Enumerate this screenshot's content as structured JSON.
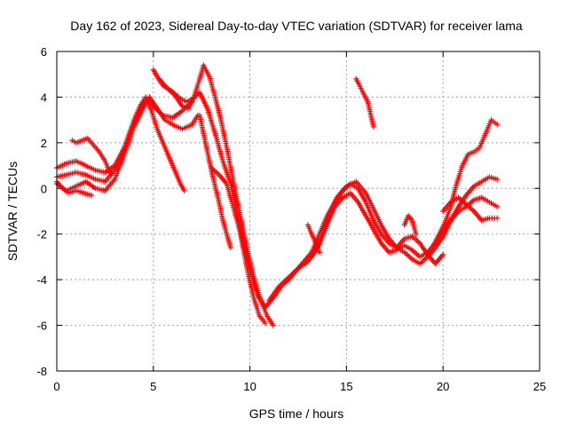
{
  "chart_data": {
    "type": "scatter",
    "title": "Day 162 of 2023, Sidereal Day-to-day VTEC variation (SDTVAR) for receiver lama",
    "xlabel": "GPS time / hours",
    "ylabel": "SDTVAR / TECUs",
    "xlim": [
      0,
      25
    ],
    "ylim": [
      -8,
      6
    ],
    "xticks": [
      "0",
      "5",
      "10",
      "15",
      "20",
      "25"
    ],
    "yticks": [
      "-8",
      "-6",
      "-4",
      "-2",
      "0",
      "2",
      "4",
      "6"
    ],
    "grid": true,
    "marker": "plus",
    "color": "#ff0000",
    "series": [
      {
        "x": [
          0.0,
          0.5,
          1.0,
          1.5,
          2.0,
          2.5,
          3.0,
          3.5,
          4.0,
          4.3,
          4.6,
          4.9,
          5.2,
          5.6,
          6.0,
          6.4,
          6.6
        ],
        "y": [
          0.9,
          1.1,
          1.2,
          1.0,
          0.8,
          0.7,
          1.0,
          1.8,
          3.0,
          3.6,
          4.0,
          3.4,
          2.6,
          1.8,
          1.0,
          0.2,
          -0.1
        ]
      },
      {
        "x": [
          0.0,
          0.5,
          1.0,
          1.5,
          2.0,
          2.5,
          3.0,
          3.5,
          4.0,
          4.5,
          4.8,
          5.2,
          5.6,
          6.0,
          6.5,
          7.0,
          7.3
        ],
        "y": [
          0.5,
          0.6,
          0.7,
          0.6,
          0.4,
          0.3,
          0.8,
          1.8,
          2.9,
          3.7,
          4.0,
          3.5,
          3.0,
          2.8,
          2.6,
          2.8,
          3.2
        ]
      },
      {
        "x": [
          0.0,
          0.5,
          1.0,
          1.5,
          2.0,
          2.5,
          3.0,
          3.5,
          4.0,
          4.4,
          4.7,
          5.0,
          5.5,
          6.0,
          6.5,
          7.0
        ],
        "y": [
          0.2,
          -0.1,
          0.1,
          0.3,
          0.0,
          -0.1,
          0.4,
          1.5,
          2.7,
          3.4,
          3.9,
          3.6,
          3.2,
          3.1,
          3.4,
          3.8
        ]
      },
      {
        "x": [
          0.0,
          0.3,
          0.6,
          1.0,
          1.4,
          1.8
        ],
        "y": [
          0.3,
          0.0,
          -0.2,
          -0.1,
          -0.2,
          -0.3
        ]
      },
      {
        "x": [
          0.8,
          1.0,
          1.3,
          1.6,
          1.9,
          2.2,
          2.5,
          2.8
        ],
        "y": [
          2.1,
          2.0,
          2.1,
          2.2,
          1.9,
          1.6,
          1.2,
          0.6
        ]
      },
      {
        "x": [
          5.0,
          5.2,
          5.5,
          5.9,
          6.3,
          6.7,
          7.0,
          7.4,
          7.8,
          8.2,
          8.6,
          9.0,
          9.3,
          9.6,
          9.9,
          10.2,
          10.5,
          10.8
        ],
        "y": [
          5.2,
          4.9,
          4.5,
          4.3,
          4.0,
          3.8,
          3.9,
          4.2,
          3.5,
          2.4,
          1.2,
          0.2,
          -1.0,
          -2.4,
          -3.7,
          -4.8,
          -5.6,
          -5.9
        ]
      },
      {
        "x": [
          5.3,
          5.7,
          6.1,
          6.5,
          6.8,
          7.1,
          7.4,
          7.6,
          7.9,
          8.2,
          8.5,
          8.8,
          9.1,
          9.4,
          9.7,
          10.0,
          10.3,
          10.6,
          10.9,
          11.2
        ],
        "y": [
          4.8,
          4.4,
          4.1,
          3.6,
          3.5,
          4.0,
          4.8,
          5.4,
          4.9,
          4.0,
          3.0,
          1.8,
          0.5,
          -0.8,
          -2.0,
          -3.2,
          -4.2,
          -5.0,
          -5.6,
          -6.0
        ]
      },
      {
        "x": [
          7.4,
          7.6,
          7.8,
          8.0,
          8.2,
          8.4,
          8.6,
          8.8,
          9.0
        ],
        "y": [
          3.2,
          2.4,
          1.6,
          0.8,
          0.1,
          -0.6,
          -1.4,
          -2.0,
          -2.6
        ]
      },
      {
        "x": [
          8.0,
          8.4,
          8.8,
          9.2,
          9.6,
          10.0,
          10.4,
          10.8,
          11.2,
          11.6,
          12.0,
          12.4,
          12.8,
          13.2,
          13.6,
          14.0,
          14.4,
          14.8,
          15.2,
          15.6,
          16.0,
          16.4,
          16.8,
          17.2,
          17.6,
          18.0,
          18.4,
          18.8,
          19.2,
          19.6,
          20.0
        ],
        "y": [
          0.9,
          0.6,
          0.2,
          -1.0,
          -2.2,
          -3.6,
          -4.7,
          -5.2,
          -4.8,
          -4.3,
          -4.0,
          -3.6,
          -3.2,
          -2.8,
          -2.0,
          -1.2,
          -0.6,
          -0.1,
          0.2,
          0.0,
          -0.6,
          -1.4,
          -2.0,
          -2.4,
          -2.6,
          -2.2,
          -2.1,
          -2.4,
          -2.9,
          -3.3,
          -2.9
        ]
      },
      {
        "x": [
          11.0,
          11.5,
          12.0,
          12.5,
          13.0,
          13.5,
          14.0,
          14.5,
          15.0,
          15.5,
          16.0,
          16.4,
          16.8,
          17.2,
          17.6,
          18.0,
          18.4,
          18.8,
          19.2,
          19.6,
          20.0,
          20.4,
          20.8,
          21.2,
          21.6,
          22.0,
          22.4,
          22.8
        ],
        "y": [
          -4.9,
          -4.3,
          -3.9,
          -3.5,
          -3.2,
          -2.6,
          -1.4,
          -0.4,
          0.1,
          0.3,
          -0.2,
          -0.9,
          -1.6,
          -2.2,
          -2.6,
          -2.8,
          -3.1,
          -3.3,
          -3.0,
          -2.6,
          -2.1,
          -1.4,
          -0.8,
          -0.3,
          0.1,
          0.3,
          0.5,
          0.4
        ]
      },
      {
        "x": [
          13.2,
          13.6,
          14.0,
          14.4,
          14.8,
          15.2,
          15.6,
          16.0,
          16.4,
          16.8,
          17.2,
          17.6,
          18.0,
          18.4,
          18.8,
          19.2,
          19.6,
          20.0,
          20.4,
          20.8,
          21.2,
          21.6,
          22.0,
          22.4,
          22.8
        ],
        "y": [
          -3.0,
          -2.4,
          -1.6,
          -0.8,
          -0.4,
          -0.2,
          -0.6,
          -1.2,
          -1.8,
          -2.4,
          -2.8,
          -2.7,
          -2.5,
          -2.7,
          -3.0,
          -2.8,
          -2.4,
          -1.8,
          -1.4,
          -1.0,
          -0.8,
          -0.5,
          -0.4,
          -0.6,
          -0.8
        ]
      },
      {
        "x": [
          13.0,
          13.3,
          13.6
        ],
        "y": [
          -1.6,
          -2.2,
          -2.8
        ]
      },
      {
        "x": [
          15.5,
          15.8,
          16.1,
          16.4
        ],
        "y": [
          4.8,
          4.3,
          3.8,
          2.7
        ]
      },
      {
        "x": [
          19.5,
          19.8,
          20.1,
          20.4,
          20.7,
          21.0,
          21.3,
          21.6,
          21.9,
          22.2,
          22.5,
          22.8
        ],
        "y": [
          -2.5,
          -2.0,
          -1.5,
          -0.8,
          0.2,
          1.0,
          1.5,
          1.6,
          1.8,
          2.4,
          3.0,
          2.8
        ]
      },
      {
        "x": [
          20.0,
          20.4,
          20.8,
          21.2,
          21.6,
          22.0,
          22.4,
          22.8
        ],
        "y": [
          -1.0,
          -0.6,
          -0.4,
          -0.7,
          -1.0,
          -1.4,
          -1.3,
          -1.3
        ]
      },
      {
        "x": [
          18.0,
          18.2,
          18.4,
          18.6
        ],
        "y": [
          -1.6,
          -1.2,
          -1.4,
          -2.0
        ]
      }
    ]
  }
}
